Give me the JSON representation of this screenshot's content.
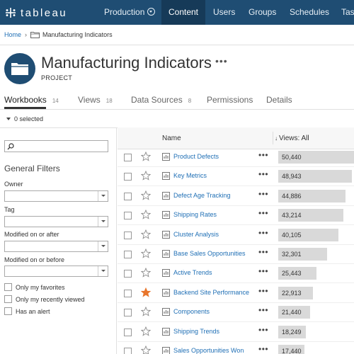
{
  "nav": {
    "logo_text": "tableau",
    "site_label": "Production",
    "items": [
      {
        "label": "Content",
        "active": true
      },
      {
        "label": "Users",
        "active": false
      },
      {
        "label": "Groups",
        "active": false
      },
      {
        "label": "Schedules",
        "active": false
      },
      {
        "label": "Task",
        "active": false
      }
    ]
  },
  "breadcrumb": {
    "home": "Home",
    "separator": "›",
    "current": "Manufacturing Indicators"
  },
  "project": {
    "title": "Manufacturing Indicators",
    "kind": "PROJECT",
    "more": "•••"
  },
  "tabs": [
    {
      "label": "Workbooks",
      "count": "14",
      "active": true
    },
    {
      "label": "Views",
      "count": "18",
      "active": false
    },
    {
      "label": "Data Sources",
      "count": "8",
      "active": false
    },
    {
      "label": "Permissions",
      "count": "",
      "active": false
    },
    {
      "label": "Details",
      "count": "",
      "active": false
    }
  ],
  "selection": {
    "label": "0 selected"
  },
  "filters": {
    "title": "General Filters",
    "search_value": "",
    "owner_label": "Owner",
    "tag_label": "Tag",
    "modified_after_label": "Modified on or after",
    "modified_before_label": "Modified on or before",
    "checkboxes": [
      {
        "label": "Only my favorites",
        "checked": false
      },
      {
        "label": "Only my recently viewed",
        "checked": false
      },
      {
        "label": "Has an alert",
        "checked": false
      }
    ]
  },
  "table": {
    "name_header": "Name",
    "views_header": "Views: All",
    "sort_indicator": "↓",
    "max_views": 50440,
    "rows": [
      {
        "name": "Product Defects",
        "views": 50440,
        "views_label": "50,440",
        "favorite": false
      },
      {
        "name": "Key Metrics",
        "views": 48943,
        "views_label": "48,943",
        "favorite": false
      },
      {
        "name": "Defect Age Tracking",
        "views": 44886,
        "views_label": "44,886",
        "favorite": false
      },
      {
        "name": "Shipping Rates",
        "views": 43214,
        "views_label": "43,214",
        "favorite": false
      },
      {
        "name": "Cluster Analysis",
        "views": 40105,
        "views_label": "40,105",
        "favorite": false
      },
      {
        "name": "Base Sales Opportunities",
        "views": 32301,
        "views_label": "32,301",
        "favorite": false
      },
      {
        "name": "Active Trends",
        "views": 25443,
        "views_label": "25,443",
        "favorite": false
      },
      {
        "name": "Backend Site Performance",
        "views": 22913,
        "views_label": "22,913",
        "favorite": true
      },
      {
        "name": "Components",
        "views": 21440,
        "views_label": "21,440",
        "favorite": false
      },
      {
        "name": "Shipping Trends",
        "views": 18249,
        "views_label": "18,249",
        "favorite": false
      },
      {
        "name": "Sales Opportunities Won",
        "views": 17440,
        "views_label": "17,440",
        "favorite": false
      }
    ]
  },
  "colors": {
    "nav_bg": "#1f4d73",
    "nav_active": "#163a58",
    "link": "#1f6fb5",
    "favorite_star": "#e8762c",
    "bar": "#d9d9d9"
  }
}
